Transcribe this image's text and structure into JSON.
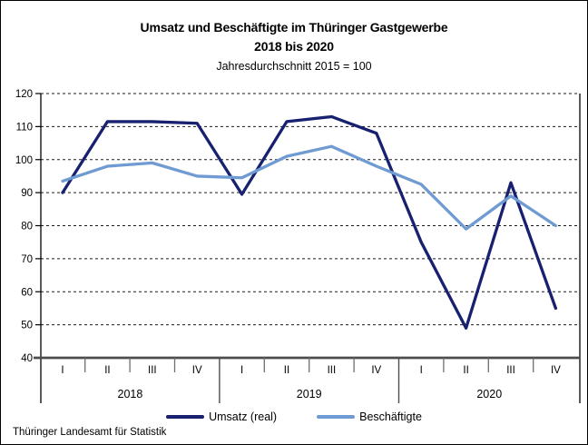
{
  "title": {
    "line1": "Umsatz und Beschäftigte im Thüringer Gastgewerbe",
    "line2": "2018 bis 2020",
    "subtitle": "Jahresdurchschnitt 2015 = 100"
  },
  "source": "Thüringer Landesamt für Statistik",
  "chart_data": {
    "type": "line",
    "title": "Umsatz und Beschäftigte im Thüringer Gastgewerbe 2018 bis 2020",
    "subtitle": "Jahresdurchschnitt 2015 = 100",
    "x_quarters": [
      "I",
      "II",
      "III",
      "IV",
      "I",
      "II",
      "III",
      "IV",
      "I",
      "II",
      "III",
      "IV"
    ],
    "year_groups": [
      {
        "label": "2018",
        "span": 4
      },
      {
        "label": "2019",
        "span": 4
      },
      {
        "label": "2020",
        "span": 4
      }
    ],
    "y_ticks": [
      40,
      50,
      60,
      70,
      80,
      90,
      100,
      110,
      120
    ],
    "ylim": [
      40,
      120
    ],
    "grid": "horizontal-dashed",
    "legend_position": "bottom",
    "axis_color": "#000000",
    "baseline_color": "#4d4d4d",
    "tick_color": "#6e6e6e",
    "series": [
      {
        "name": "Umsatz (real)",
        "color": "#182070",
        "values": [
          90,
          111.5,
          111.5,
          111,
          89.5,
          111.5,
          113,
          108,
          75,
          49,
          93,
          55
        ]
      },
      {
        "name": "Beschäftigte",
        "color": "#6f9bd2",
        "values": [
          93.5,
          98,
          99,
          95,
          94.5,
          101,
          104,
          98,
          92.5,
          79,
          89,
          80
        ]
      }
    ]
  }
}
